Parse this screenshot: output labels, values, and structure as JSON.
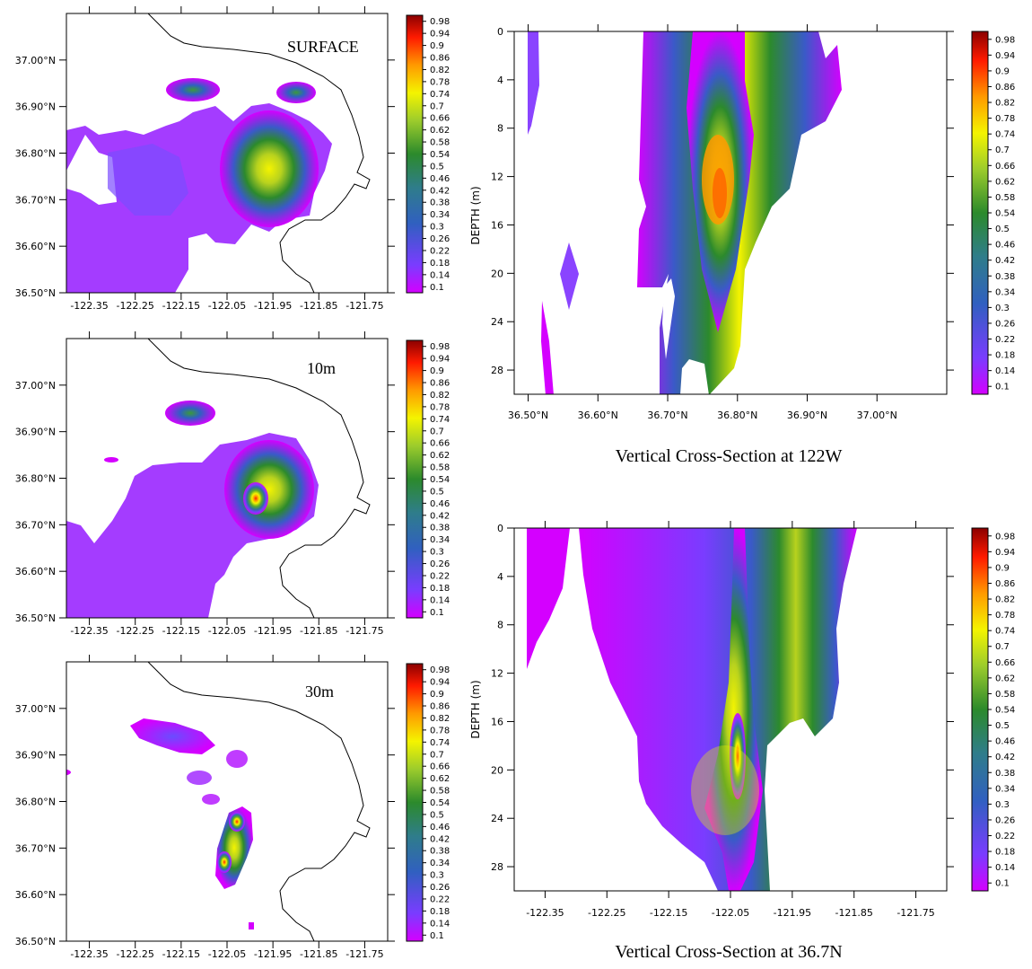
{
  "colorbar": {
    "labels": [
      "0.98",
      "0.94",
      "0.9",
      "0.86",
      "0.82",
      "0.78",
      "0.74",
      "0.7",
      "0.66",
      "0.62",
      "0.58",
      "0.54",
      "0.5",
      "0.46",
      "0.42",
      "0.38",
      "0.34",
      "0.3",
      "0.26",
      "0.22",
      "0.18",
      "0.14",
      "0.1"
    ]
  },
  "colors": {
    "low": "#d400ff",
    "mid": "#2a8a2a",
    "high": "#8b0000",
    "coastline": "#000000"
  },
  "chart_data": [
    {
      "type": "heatmap",
      "title": "SURFACE",
      "subtitle": "",
      "xlabel": "",
      "ylabel": "",
      "x_ticks": [
        "-122.35",
        "-122.25",
        "-122.15",
        "-122.05",
        "-121.95",
        "-121.85",
        "-121.75"
      ],
      "y_ticks": [
        "37.00°N",
        "36.90°N",
        "36.80°N",
        "36.70°N",
        "36.60°N",
        "36.50°N"
      ],
      "xlim": [
        -122.4,
        -121.7
      ],
      "ylim": [
        36.5,
        37.1
      ],
      "colorscale_range": [
        0.1,
        0.98
      ],
      "hotspots": [
        {
          "lon": -121.99,
          "lat": 36.75,
          "value": 0.7
        },
        {
          "lon": -121.96,
          "lat": 36.79,
          "value": 0.62
        },
        {
          "lon": -122.13,
          "lat": 36.94,
          "value": 0.42
        },
        {
          "lon": -121.91,
          "lat": 36.93,
          "value": 0.42
        }
      ]
    },
    {
      "type": "heatmap",
      "title": "10m",
      "subtitle": "",
      "xlabel": "",
      "ylabel": "",
      "x_ticks": [
        "-122.35",
        "-122.25",
        "-122.15",
        "-122.05",
        "-121.95",
        "-121.85",
        "-121.75"
      ],
      "y_ticks": [
        "37.00°N",
        "36.90°N",
        "36.80°N",
        "36.70°N",
        "36.60°N",
        "36.50°N"
      ],
      "xlim": [
        -122.4,
        -121.7
      ],
      "ylim": [
        36.5,
        37.1
      ],
      "colorscale_range": [
        0.1,
        0.98
      ],
      "hotspots": [
        {
          "lon": -122.02,
          "lat": 36.76,
          "value": 0.74
        },
        {
          "lon": -121.97,
          "lat": 36.8,
          "value": 0.66
        },
        {
          "lon": -122.13,
          "lat": 36.94,
          "value": 0.4
        }
      ]
    },
    {
      "type": "heatmap",
      "title": "30m",
      "subtitle": "",
      "xlabel": "",
      "ylabel": "",
      "x_ticks": [
        "-122.35",
        "-122.25",
        "-122.15",
        "-122.05",
        "-121.95",
        "-121.85",
        "-121.75"
      ],
      "y_ticks": [
        "37.00°N",
        "36.90°N",
        "36.80°N",
        "36.70°N",
        "36.60°N",
        "36.50°N"
      ],
      "xlim": [
        -122.4,
        -121.7
      ],
      "ylim": [
        36.5,
        37.1
      ],
      "colorscale_range": [
        0.1,
        0.98
      ],
      "hotspots": [
        {
          "lon": -122.01,
          "lat": 36.75,
          "value": 0.86
        },
        {
          "lon": -122.04,
          "lat": 36.67,
          "value": 0.74
        }
      ]
    },
    {
      "type": "heatmap",
      "title": "Vertical Cross-Section at 122W",
      "subtitle": "",
      "xlabel": "",
      "ylabel": "DEPTH (m)",
      "x_ticks": [
        "36.50°N",
        "36.60°N",
        "36.70°N",
        "36.80°N",
        "36.90°N",
        "37.00°N"
      ],
      "y_ticks": [
        "0",
        "4",
        "8",
        "12",
        "16",
        "20",
        "24",
        "28"
      ],
      "xlim": [
        36.48,
        37.1
      ],
      "ylim": [
        0,
        30
      ],
      "colorscale_range": [
        0.1,
        0.98
      ],
      "core": {
        "lat": 36.78,
        "depth": 14,
        "value": 0.8
      }
    },
    {
      "type": "heatmap",
      "title": "Vertical Cross-Section at 36.7N",
      "subtitle": "",
      "xlabel": "",
      "ylabel": "DEPTH (m)",
      "x_ticks": [
        "-122.35",
        "-122.25",
        "-122.15",
        "-122.05",
        "-121.95",
        "-121.85",
        "-121.75"
      ],
      "y_ticks": [
        "0",
        "4",
        "8",
        "12",
        "16",
        "20",
        "24",
        "28"
      ],
      "xlim": [
        -122.4,
        -121.7
      ],
      "ylim": [
        0,
        30
      ],
      "colorscale_range": [
        0.1,
        0.98
      ],
      "core": {
        "lon": -122.05,
        "depth": 19,
        "value": 0.94
      }
    }
  ]
}
